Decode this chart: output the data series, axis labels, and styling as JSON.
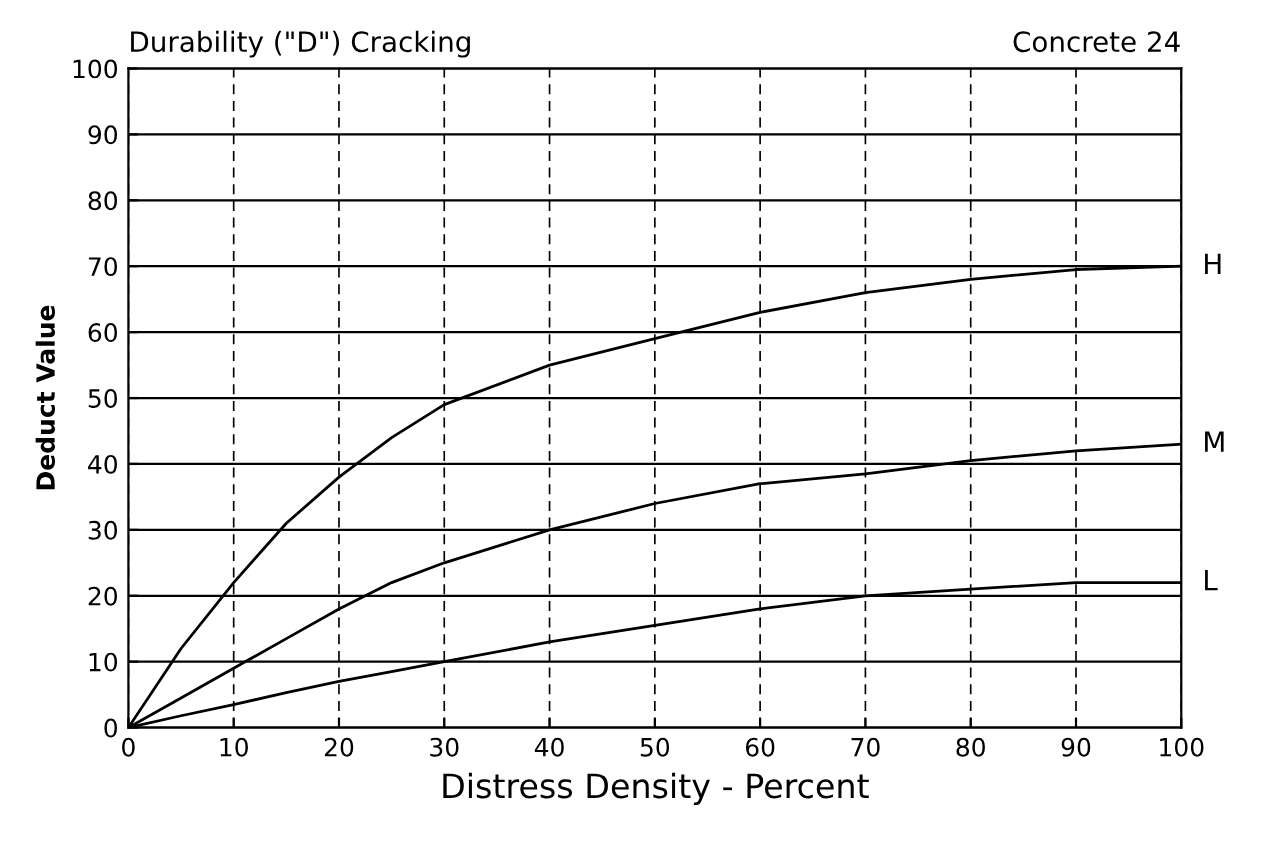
{
  "chart_data": {
    "type": "line",
    "title": "Durability (\"D\") Cracking",
    "annotations": [
      "Concrete 24"
    ],
    "xlabel": "Distress Density - Percent",
    "ylabel": "Deduct Value",
    "x": [
      0,
      5,
      10,
      15,
      20,
      25,
      30,
      40,
      50,
      60,
      70,
      80,
      90,
      100
    ],
    "series": [
      {
        "name": "H",
        "color": "#000000",
        "values": [
          0,
          12,
          22,
          31,
          38,
          44,
          49,
          55,
          59,
          63,
          66,
          68,
          69.5,
          70
        ]
      },
      {
        "name": "M",
        "color": "#000000",
        "values": [
          0,
          4.5,
          9,
          13.5,
          18,
          22,
          25,
          30,
          34,
          37,
          38.5,
          40.5,
          42,
          43
        ]
      },
      {
        "name": "L",
        "color": "#000000",
        "values": [
          0,
          1.8,
          3.5,
          5.3,
          7,
          8.5,
          10,
          13,
          15.5,
          18,
          20,
          21,
          22,
          22
        ]
      }
    ],
    "xlim": [
      0,
      100
    ],
    "xticks": [
      0,
      10,
      20,
      30,
      40,
      50,
      60,
      70,
      80,
      90,
      100
    ],
    "ylim": [
      0,
      100
    ],
    "yticks": [
      0,
      10,
      20,
      30,
      40,
      50,
      60,
      70,
      80,
      90,
      100
    ],
    "grid": true,
    "legend": false,
    "marker": "none",
    "line_style": "solid"
  }
}
